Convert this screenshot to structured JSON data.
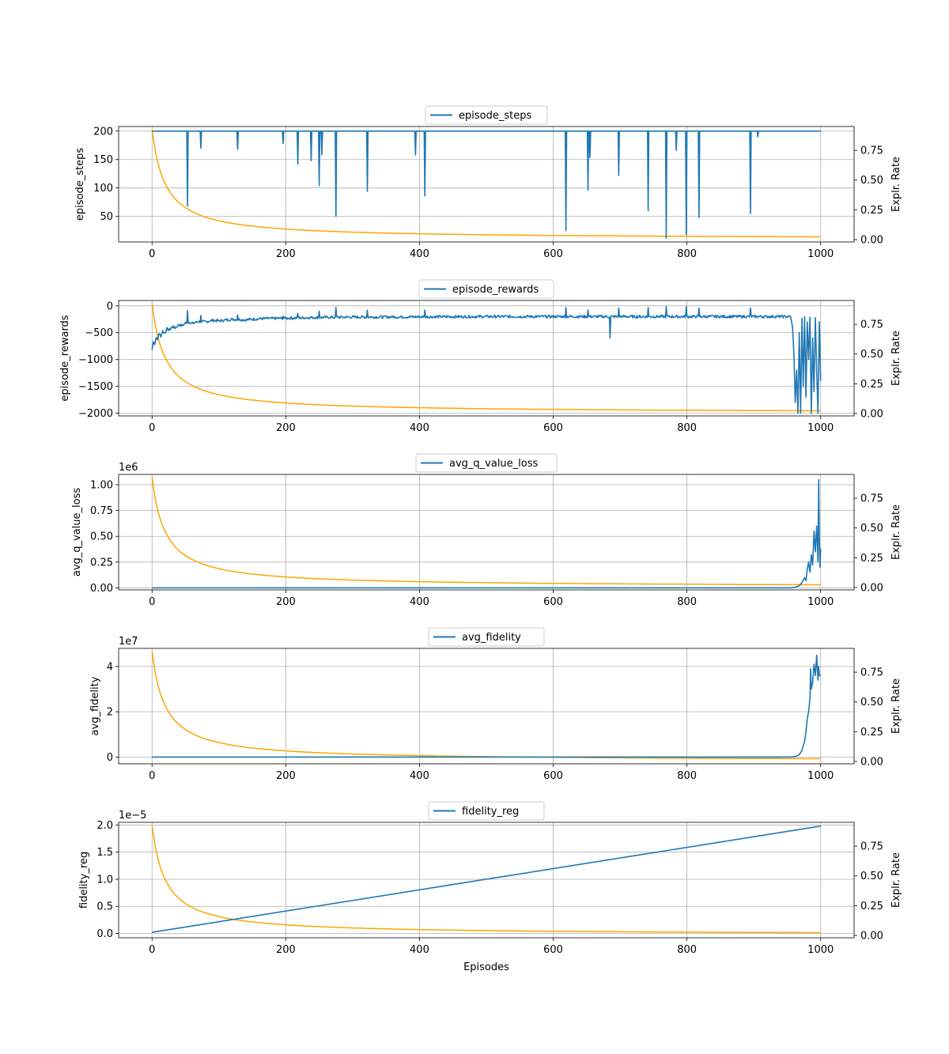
{
  "figure": {
    "xlabel": "Episodes",
    "x_ticks": [
      0,
      200,
      400,
      600,
      800,
      1000
    ],
    "right_axis_label": "Explr. Rate",
    "right_axis_ticks": [
      0.0,
      0.25,
      0.5,
      0.75
    ],
    "right_axis_ylim": [
      -0.02,
      0.95
    ],
    "line_color": "#1f77b4",
    "exploration_color": "#ffa500",
    "grid": true
  },
  "chart_data": [
    {
      "type": "line",
      "legend": "episode_steps",
      "legend_position": "top-center",
      "ylabel": "episode_steps",
      "offset_text": "",
      "xlim": [
        -50,
        1050
      ],
      "ylim": [
        5,
        208
      ],
      "y_ticks": [
        50,
        100,
        150,
        200
      ],
      "y_tick_labels": [
        "50",
        "100",
        "150",
        "200"
      ],
      "series": [
        {
          "kind": "spikes",
          "baseline": 200,
          "x_range": [
            0,
            1000
          ],
          "spikes": [
            [
              53,
              68
            ],
            [
              73,
              170
            ],
            [
              128,
              168
            ],
            [
              196,
              178
            ],
            [
              218,
              142
            ],
            [
              238,
              148
            ],
            [
              250,
              104
            ],
            [
              254,
              158
            ],
            [
              275,
              50
            ],
            [
              322,
              94
            ],
            [
              394,
              158
            ],
            [
              408,
              86
            ],
            [
              619,
              25
            ],
            [
              652,
              96
            ],
            [
              655,
              154
            ],
            [
              698,
              122
            ],
            [
              742,
              60
            ],
            [
              769,
              12
            ],
            [
              784,
              166
            ],
            [
              799,
              18
            ],
            [
              818,
              48
            ],
            [
              895,
              55
            ],
            [
              906,
              190
            ]
          ]
        }
      ]
    },
    {
      "type": "line",
      "legend": "episode_rewards",
      "legend_position": "top-center",
      "ylabel": "episode_rewards",
      "offset_text": "",
      "xlim": [
        -50,
        1050
      ],
      "ylim": [
        -2050,
        100
      ],
      "y_ticks": [
        -2000,
        -1500,
        -1000,
        -500,
        0
      ],
      "y_tick_labels": [
        "−2000",
        "−1500",
        "−1000",
        "−500",
        "0"
      ],
      "series": [
        {
          "kind": "noisy",
          "points": [
            [
              0,
              -820
            ],
            [
              2,
              -650
            ],
            [
              4,
              -720
            ],
            [
              6,
              -580
            ],
            [
              8,
              -640
            ],
            [
              10,
              -520
            ],
            [
              13,
              -560
            ],
            [
              16,
              -470
            ],
            [
              19,
              -510
            ],
            [
              22,
              -430
            ],
            [
              26,
              -450
            ],
            [
              30,
              -390
            ],
            [
              35,
              -410
            ],
            [
              40,
              -350
            ],
            [
              45,
              -370
            ],
            [
              50,
              -320
            ],
            [
              55,
              -300
            ],
            [
              60,
              -330
            ],
            [
              70,
              -290
            ],
            [
              80,
              -300
            ],
            [
              90,
              -270
            ],
            [
              100,
              -280
            ],
            [
              120,
              -250
            ],
            [
              140,
              -260
            ],
            [
              160,
              -240
            ],
            [
              180,
              -235
            ],
            [
              200,
              -230
            ],
            [
              250,
              -215
            ],
            [
              300,
              -210
            ],
            [
              400,
              -205
            ],
            [
              500,
              -200
            ],
            [
              600,
              -200
            ],
            [
              700,
              -200
            ],
            [
              800,
              -200
            ],
            [
              950,
              -200
            ]
          ],
          "noise": 25,
          "spikes": [
            [
              53,
              -90
            ],
            [
              73,
              -180
            ],
            [
              128,
              -170
            ],
            [
              196,
              -190
            ],
            [
              218,
              -140
            ],
            [
              250,
              -100
            ],
            [
              275,
              -30
            ],
            [
              322,
              -80
            ],
            [
              408,
              -80
            ],
            [
              619,
              -30
            ],
            [
              652,
              -80
            ],
            [
              685,
              -600
            ],
            [
              698,
              -40
            ],
            [
              742,
              -30
            ],
            [
              769,
              -10
            ],
            [
              799,
              -20
            ],
            [
              818,
              -40
            ],
            [
              895,
              -40
            ]
          ],
          "tail": [
            [
              955,
              -200
            ],
            [
              958,
              -400
            ],
            [
              960,
              -900
            ],
            [
              962,
              -1800
            ],
            [
              964,
              -1200
            ],
            [
              966,
              -2000
            ],
            [
              968,
              -500
            ],
            [
              970,
              -2000
            ],
            [
              972,
              -230
            ],
            [
              974,
              -1500
            ],
            [
              976,
              -200
            ],
            [
              978,
              -1700
            ],
            [
              980,
              -300
            ],
            [
              982,
              -1000
            ],
            [
              984,
              -210
            ],
            [
              986,
              -2000
            ],
            [
              988,
              -600
            ],
            [
              990,
              -1600
            ],
            [
              992,
              -220
            ],
            [
              994,
              -1200
            ],
            [
              996,
              -2000
            ],
            [
              998,
              -300
            ],
            [
              1000,
              -1400
            ]
          ]
        }
      ]
    },
    {
      "type": "line",
      "legend": "avg_q_value_loss",
      "legend_position": "top-center",
      "ylabel": "avg_q_value_loss",
      "offset_text": "1e6",
      "xlim": [
        -50,
        1050
      ],
      "ylim": [
        -0.02,
        1.1
      ],
      "y_ticks": [
        0.0,
        0.25,
        0.5,
        0.75,
        1.0
      ],
      "y_tick_labels": [
        "0.00",
        "0.25",
        "0.50",
        "0.75",
        "1.00"
      ],
      "series": [
        {
          "kind": "flat-then-tail",
          "flat_value": 0.0,
          "tail": [
            [
              955,
              0.0
            ],
            [
              962,
              0.005
            ],
            [
              968,
              0.02
            ],
            [
              972,
              0.05
            ],
            [
              976,
              0.1
            ],
            [
              978,
              0.07
            ],
            [
              980,
              0.18
            ],
            [
              982,
              0.25
            ],
            [
              984,
              0.15
            ],
            [
              986,
              0.32
            ],
            [
              988,
              0.22
            ],
            [
              990,
              0.55
            ],
            [
              992,
              0.35
            ],
            [
              994,
              0.6
            ],
            [
              996,
              0.25
            ],
            [
              997,
              1.05
            ],
            [
              998,
              0.5
            ],
            [
              999,
              0.2
            ],
            [
              1000,
              0.38
            ]
          ]
        }
      ]
    },
    {
      "type": "line",
      "legend": "avg_fidelity",
      "legend_position": "top-center",
      "ylabel": "avg_fidelity",
      "offset_text": "1e7",
      "xlim": [
        -50,
        1050
      ],
      "ylim": [
        -0.3,
        4.8
      ],
      "y_ticks": [
        0,
        2,
        4
      ],
      "y_tick_labels": [
        "0",
        "2",
        "4"
      ],
      "series": [
        {
          "kind": "flat-then-tail",
          "flat_value": 0.0,
          "tail": [
            [
              955,
              0.0
            ],
            [
              962,
              0.02
            ],
            [
              968,
              0.1
            ],
            [
              972,
              0.3
            ],
            [
              976,
              0.7
            ],
            [
              978,
              1.1
            ],
            [
              980,
              1.7
            ],
            [
              982,
              2.0
            ],
            [
              984,
              2.6
            ],
            [
              985,
              3.9
            ],
            [
              986,
              3.0
            ],
            [
              988,
              3.3
            ],
            [
              990,
              4.1
            ],
            [
              992,
              3.6
            ],
            [
              994,
              4.5
            ],
            [
              996,
              3.4
            ],
            [
              997,
              4.0
            ],
            [
              998,
              3.6
            ],
            [
              1000,
              3.6
            ]
          ]
        }
      ]
    },
    {
      "type": "line",
      "legend": "fidelity_reg",
      "legend_position": "top-center",
      "ylabel": "fidelity_reg",
      "offset_text": "1e−5",
      "xlim": [
        -50,
        1050
      ],
      "ylim": [
        -0.08,
        2.05
      ],
      "y_ticks": [
        0.0,
        0.5,
        1.0,
        1.5,
        2.0
      ],
      "y_tick_labels": [
        "0.0",
        "0.5",
        "1.0",
        "1.5",
        "2.0"
      ],
      "series": [
        {
          "kind": "linear",
          "points": [
            [
              0,
              0.02
            ],
            [
              1000,
              1.98
            ]
          ]
        }
      ]
    }
  ]
}
